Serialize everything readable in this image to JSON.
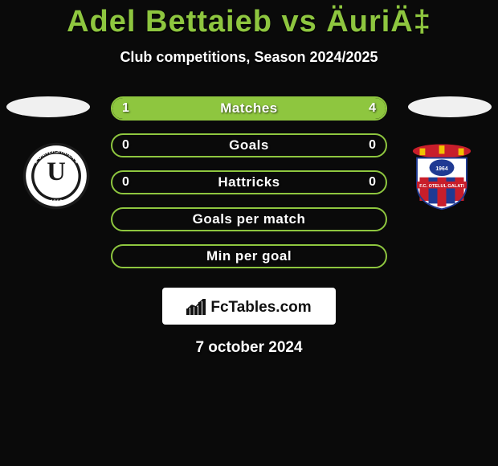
{
  "title_color": "#8ec63f",
  "accent_color": "#8ec63f",
  "background_color": "#0a0a0a",
  "text_color": "#ffffff",
  "title": "Adel Bettaieb vs ÄuriÄ‡",
  "subtitle": "Club competitions, Season 2024/2025",
  "footer_brand": "FcTables.com",
  "footer_date": "7 october 2024",
  "bars": [
    {
      "label": "Matches",
      "left": "1",
      "right": "4",
      "left_pct": 20,
      "right_pct": 80,
      "show_values": true
    },
    {
      "label": "Goals",
      "left": "0",
      "right": "0",
      "left_pct": 0,
      "right_pct": 0,
      "show_values": true
    },
    {
      "label": "Hattricks",
      "left": "0",
      "right": "0",
      "left_pct": 0,
      "right_pct": 0,
      "show_values": true
    },
    {
      "label": "Goals per match",
      "left": "",
      "right": "",
      "left_pct": 0,
      "right_pct": 0,
      "show_values": false
    },
    {
      "label": "Min per goal",
      "left": "",
      "right": "",
      "left_pct": 0,
      "right_pct": 0,
      "show_values": false
    }
  ],
  "left_badge": {
    "name": "Universitatea Cluj",
    "year": "1919",
    "letter": "U",
    "ring_outer": "#1a1a1a",
    "ring_inner": "#ffffff",
    "center_bg": "#ffffff",
    "text_color": "#1a1a1a"
  },
  "right_badge": {
    "name": "FC Otelul Galati",
    "shield_top": "#ffffff",
    "shield_stripes": [
      "#c81e2b",
      "#1f3a93",
      "#c81e2b",
      "#1f3a93",
      "#c81e2b"
    ],
    "crown_color": "#f2c200",
    "banner_color": "#c81e2b"
  }
}
